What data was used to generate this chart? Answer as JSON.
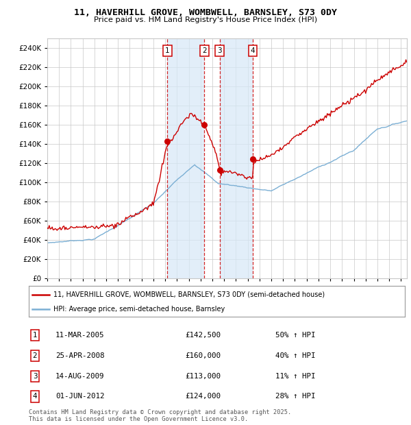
{
  "title": "11, HAVERHILL GROVE, WOMBWELL, BARNSLEY, S73 0DY",
  "subtitle": "Price paid vs. HM Land Registry's House Price Index (HPI)",
  "legend_line1": "11, HAVERHILL GROVE, WOMBWELL, BARNSLEY, S73 0DY (semi-detached house)",
  "legend_line2": "HPI: Average price, semi-detached house, Barnsley",
  "footer_line1": "Contains HM Land Registry data © Crown copyright and database right 2025.",
  "footer_line2": "This data is licensed under the Open Government Licence v3.0.",
  "transactions": [
    {
      "num": 1,
      "date": "11-MAR-2005",
      "price": 142500,
      "pct": "50%",
      "dir": "↑",
      "year": 2005.19
    },
    {
      "num": 2,
      "date": "25-APR-2008",
      "price": 160000,
      "pct": "40%",
      "dir": "↑",
      "year": 2008.32
    },
    {
      "num": 3,
      "date": "14-AUG-2009",
      "price": 113000,
      "pct": "11%",
      "dir": "↑",
      "year": 2009.62
    },
    {
      "num": 4,
      "date": "01-JUN-2012",
      "price": 124000,
      "pct": "28%",
      "dir": "↑",
      "year": 2012.42
    }
  ],
  "hpi_color": "#7bafd4",
  "price_color": "#cc0000",
  "vline_color": "#cc0000",
  "shade_color": "#d6e8f7",
  "grid_color": "#c8c8c8",
  "background_color": "#ffffff",
  "ylim": [
    0,
    250000
  ],
  "ytick_step": 20000,
  "xmin": 1995,
  "xmax": 2025.5
}
